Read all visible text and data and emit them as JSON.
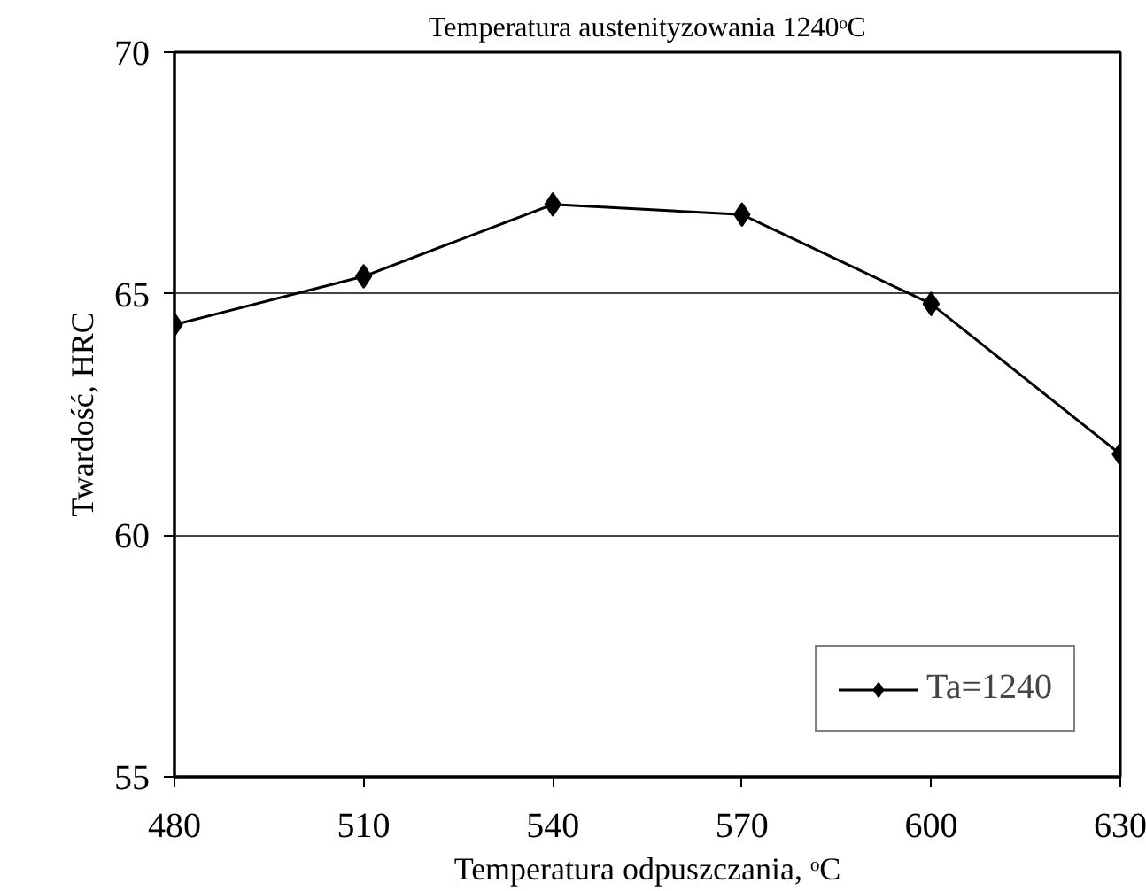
{
  "chart_data": {
    "type": "line",
    "title": "Temperatura austenityzowania 1240ᵒC",
    "xlabel": "Temperatura odpuszczania, ᵒC",
    "ylabel": "Twardość, HRC",
    "x": [
      480,
      510,
      540,
      570,
      600,
      630
    ],
    "series": [
      {
        "name": "Ta=1240",
        "color": "#000000",
        "values": [
          64.36,
          65.36,
          66.85,
          66.64,
          64.79,
          61.68
        ]
      }
    ],
    "xlim": [
      480,
      630
    ],
    "xticks": [
      480,
      510,
      540,
      570,
      600,
      630
    ],
    "ylim": [
      55,
      70
    ],
    "yticks": [
      55,
      60,
      65,
      70
    ],
    "grid": "y",
    "legend": "bottom right",
    "marker": "diamond",
    "line_style": "solid"
  }
}
